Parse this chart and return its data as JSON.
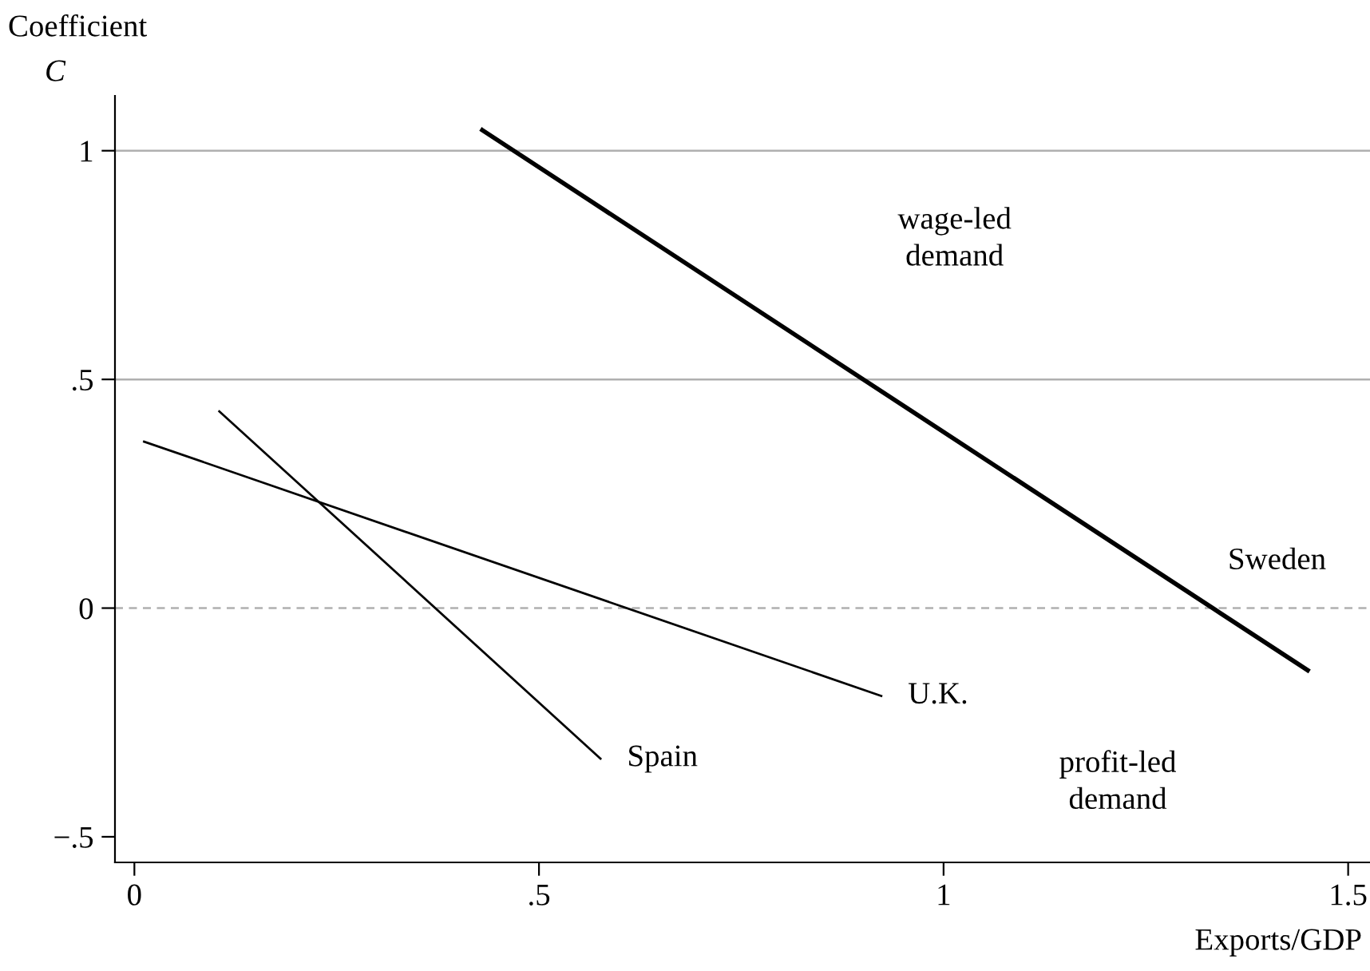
{
  "chart_data": {
    "type": "line",
    "ylabel": "Coefficient\nC",
    "xlabel": "Exports/GDP",
    "xlim": [
      -0.024,
      1.527
    ],
    "xticks": [
      {
        "value": 0,
        "label": "0"
      },
      {
        "value": 0.5,
        "label": ".5"
      },
      {
        "value": 1,
        "label": "1"
      },
      {
        "value": 1.5,
        "label": "1.5"
      }
    ],
    "ylim": [
      -0.556,
      1.12
    ],
    "yticks": [
      {
        "value": -0.5,
        "label": "−.5"
      },
      {
        "value": 0,
        "label": "0"
      },
      {
        "value": 0.5,
        "label": ".5"
      },
      {
        "value": 1,
        "label": "1"
      }
    ],
    "grid": false,
    "legend": false,
    "series": [
      {
        "name": "Sweden",
        "color": "#000000",
        "x": [
          0.43,
          1.45
        ],
        "values": [
          1.045,
          -0.136
        ]
      },
      {
        "name": "U.K.",
        "color": "#000000",
        "x": [
          0.012,
          0.923
        ],
        "values": [
          0.364,
          -0.192
        ]
      },
      {
        "name": "Spain",
        "color": "#000000",
        "x": [
          0.105,
          0.576
        ],
        "values": [
          0.43,
          -0.329
        ]
      }
    ],
    "ref_lines": [
      {
        "axis": "y",
        "value": 1,
        "label": null,
        "color": "#b0b0b0",
        "line_style": "solid"
      },
      {
        "axis": "y",
        "value": 0.5,
        "label": null,
        "color": "#b0b0b0",
        "line_style": "solid"
      },
      {
        "axis": "y",
        "value": 0,
        "label": null,
        "color": "#b0b0b0",
        "line_style": "dashed"
      }
    ],
    "annotations": [
      "wage-led\ndemand",
      "profit-led\ndemand"
    ]
  }
}
